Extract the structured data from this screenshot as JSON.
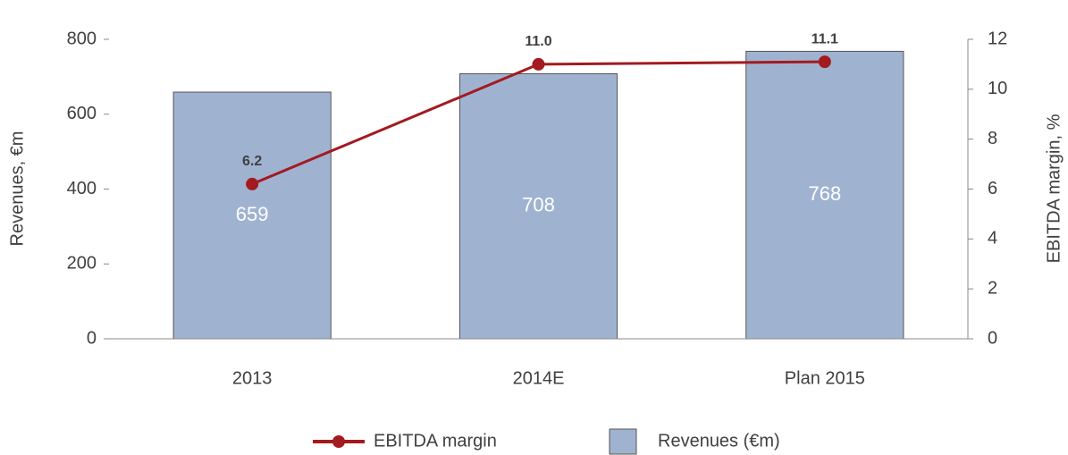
{
  "chart_data": {
    "type": "bar",
    "categories": [
      "2013",
      "2014E",
      "Plan 2015"
    ],
    "ylabel": "Revenues, €m",
    "y2label": "EBITDA margin, %",
    "ylim": [
      0,
      800
    ],
    "yticks": [
      0,
      200,
      400,
      600,
      800
    ],
    "y2lim": [
      0,
      12
    ],
    "y2ticks": [
      0,
      2,
      4,
      6,
      8,
      10,
      12
    ],
    "legend": "bottom",
    "series": [
      {
        "name": "EBITDA margin",
        "type": "line",
        "axis": "y2",
        "color": "#a31a1f",
        "values": [
          6.2,
          11.0,
          11.1
        ],
        "value_labels": [
          "6.2",
          "11.0",
          "11.1"
        ]
      },
      {
        "name": "Revenues (€m)",
        "type": "bar",
        "color": "#9fb3d1",
        "values": [
          659,
          708,
          768
        ]
      }
    ]
  }
}
